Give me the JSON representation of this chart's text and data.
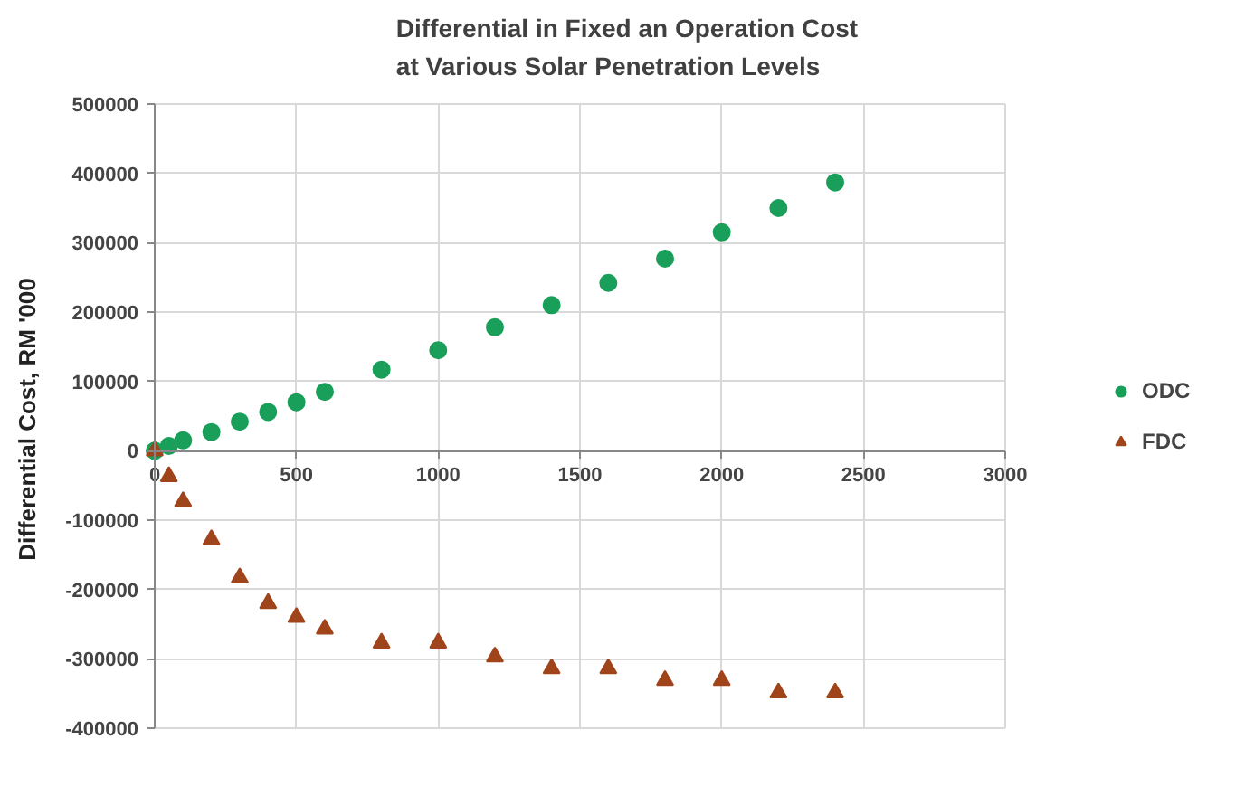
{
  "chart_data": {
    "type": "scatter",
    "title": "Differential in Fixed an Operation Cost\nat Various Solar Penetration Levels",
    "ylabel": "Differential Cost,  RM '000",
    "x": [
      0,
      50,
      100,
      200,
      300,
      400,
      500,
      600,
      800,
      1000,
      1200,
      1400,
      1600,
      1800,
      2000,
      2200,
      2400
    ],
    "series": [
      {
        "name": "ODC",
        "color": "#1a9f5a",
        "marker": "circle",
        "values": [
          0,
          7000,
          15000,
          27000,
          42000,
          56000,
          70000,
          85000,
          117000,
          145000,
          178000,
          210000,
          242000,
          277000,
          315000,
          350000,
          387000
        ]
      },
      {
        "name": "FDC",
        "color": "#a0441c",
        "marker": "triangle",
        "values": [
          0,
          -37000,
          -73000,
          -128000,
          -183000,
          -220000,
          -240000,
          -257000,
          -277000,
          -277000,
          -297000,
          -314000,
          -314000,
          -331000,
          -331000,
          -349000,
          -349000
        ]
      }
    ],
    "xlim": [
      0,
      3000
    ],
    "xticks": [
      0,
      500,
      1000,
      1500,
      2000,
      2500,
      3000
    ],
    "ylim": [
      -400000,
      500000
    ],
    "yticks": [
      -400000,
      -300000,
      -200000,
      -100000,
      0,
      100000,
      200000,
      300000,
      400000,
      500000
    ],
    "grid": true,
    "legend": "right"
  }
}
